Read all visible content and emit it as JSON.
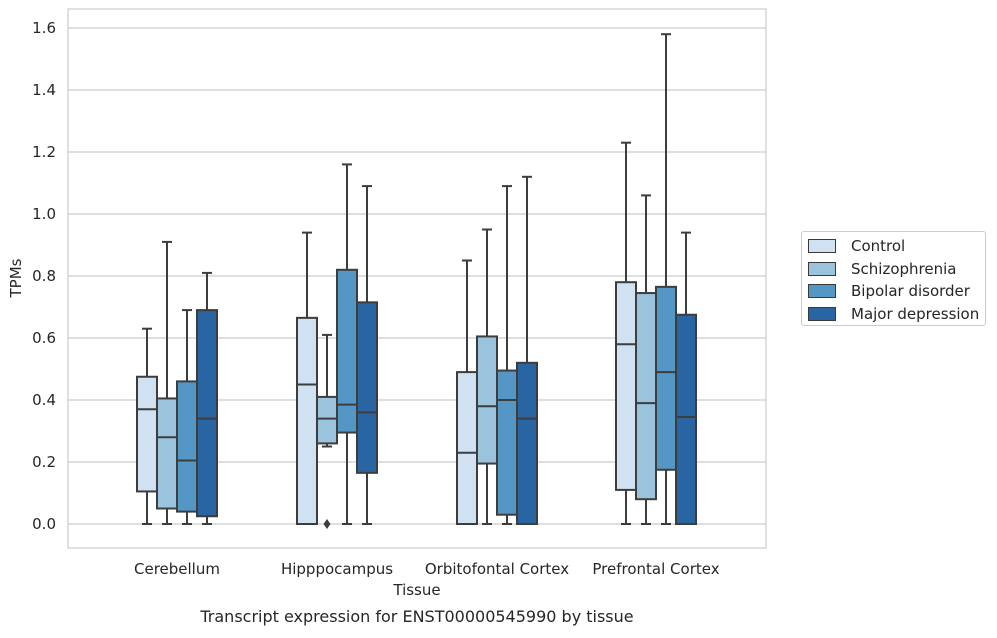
{
  "chart_data": {
    "type": "box",
    "title": "Transcript expression for ENST00000545990 by tissue",
    "xlabel": "Tissue",
    "ylabel": "TPMs",
    "ylim": [
      -0.08,
      1.66
    ],
    "yticks": [
      "0.0",
      "0.2",
      "0.4",
      "0.6",
      "0.8",
      "1.0",
      "1.2",
      "1.4",
      "1.6"
    ],
    "categories": [
      "Cerebellum",
      "Hipppocampus",
      "Orbitofontal Cortex",
      "Prefrontal Cortex"
    ],
    "grid": "horizontal",
    "legend_position": "right",
    "series": [
      {
        "name": "Control",
        "color": "#d0e1f2",
        "boxes": [
          {
            "whislo": 0.0,
            "q1": 0.105,
            "med": 0.37,
            "q3": 0.475,
            "whishi": 0.63,
            "fliers": []
          },
          {
            "whislo": 0.0,
            "q1": 0.0,
            "med": 0.45,
            "q3": 0.665,
            "whishi": 0.94,
            "fliers": []
          },
          {
            "whislo": 0.0,
            "q1": 0.0,
            "med": 0.23,
            "q3": 0.49,
            "whishi": 0.85,
            "fliers": []
          },
          {
            "whislo": 0.0,
            "q1": 0.11,
            "med": 0.58,
            "q3": 0.78,
            "whishi": 1.23,
            "fliers": []
          }
        ]
      },
      {
        "name": "Schizophrenia",
        "color": "#9ac3dd",
        "boxes": [
          {
            "whislo": 0.0,
            "q1": 0.05,
            "med": 0.28,
            "q3": 0.405,
            "whishi": 0.91,
            "fliers": []
          },
          {
            "whislo": 0.25,
            "q1": 0.26,
            "med": 0.34,
            "q3": 0.41,
            "whishi": 0.61,
            "fliers": [
              0.0
            ]
          },
          {
            "whislo": 0.0,
            "q1": 0.195,
            "med": 0.38,
            "q3": 0.605,
            "whishi": 0.95,
            "fliers": []
          },
          {
            "whislo": 0.0,
            "q1": 0.08,
            "med": 0.39,
            "q3": 0.745,
            "whishi": 1.06,
            "fliers": []
          }
        ]
      },
      {
        "name": "Bipolar disorder",
        "color": "#5597c4",
        "boxes": [
          {
            "whislo": 0.0,
            "q1": 0.04,
            "med": 0.205,
            "q3": 0.46,
            "whishi": 0.69,
            "fliers": []
          },
          {
            "whislo": 0.0,
            "q1": 0.295,
            "med": 0.385,
            "q3": 0.82,
            "whishi": 1.16,
            "fliers": []
          },
          {
            "whislo": 0.0,
            "q1": 0.03,
            "med": 0.4,
            "q3": 0.495,
            "whishi": 1.09,
            "fliers": []
          },
          {
            "whislo": 0.0,
            "q1": 0.175,
            "med": 0.49,
            "q3": 0.765,
            "whishi": 1.58,
            "fliers": []
          }
        ]
      },
      {
        "name": "Major depression",
        "color": "#2965a2",
        "boxes": [
          {
            "whislo": 0.0,
            "q1": 0.025,
            "med": 0.34,
            "q3": 0.69,
            "whishi": 0.81,
            "fliers": []
          },
          {
            "whislo": 0.0,
            "q1": 0.165,
            "med": 0.36,
            "q3": 0.715,
            "whishi": 1.09,
            "fliers": []
          },
          {
            "whislo": 0.0,
            "q1": 0.0,
            "med": 0.34,
            "q3": 0.52,
            "whishi": 1.12,
            "fliers": []
          },
          {
            "whislo": 0.0,
            "q1": 0.0,
            "med": 0.345,
            "q3": 0.675,
            "whishi": 0.94,
            "fliers": []
          }
        ]
      }
    ]
  }
}
